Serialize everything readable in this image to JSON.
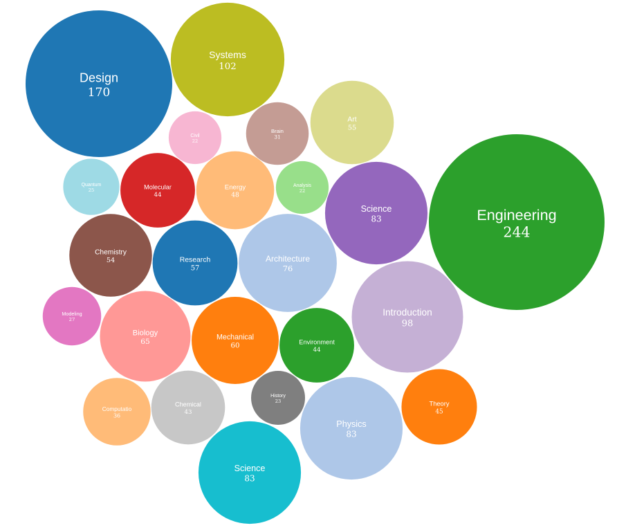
{
  "chart_data": {
    "type": "bubble",
    "title": "",
    "bubbles": [
      {
        "label": "Engineering",
        "value": 244,
        "color": "#2ca02c"
      },
      {
        "label": "Design",
        "value": 170,
        "color": "#1f77b4"
      },
      {
        "label": "Systems",
        "value": 102,
        "color": "#bcbd22"
      },
      {
        "label": "Introduction",
        "value": 98,
        "color": "#c5b0d5"
      },
      {
        "label": "Science",
        "value": 83,
        "color": "#9467bd"
      },
      {
        "label": "Physics",
        "value": 83,
        "color": "#aec7e8"
      },
      {
        "label": "Science",
        "value": 83,
        "color": "#17becf"
      },
      {
        "label": "Architecture",
        "value": 76,
        "color": "#aec7e8"
      },
      {
        "label": "Biology",
        "value": 65,
        "color": "#ff9896"
      },
      {
        "label": "Mechanical",
        "value": 60,
        "color": "#ff7f0e"
      },
      {
        "label": "Research",
        "value": 57,
        "color": "#1f77b4"
      },
      {
        "label": "Art",
        "value": 55,
        "color": "#dbdb8d"
      },
      {
        "label": "Chemistry",
        "value": 54,
        "color": "#8c564b"
      },
      {
        "label": "Energy",
        "value": 48,
        "color": "#ffbb78"
      },
      {
        "label": "Theory",
        "value": 45,
        "color": "#ff7f0e"
      },
      {
        "label": "Molecular",
        "value": 44,
        "color": "#d62728"
      },
      {
        "label": "Environment",
        "value": 44,
        "color": "#2ca02c"
      },
      {
        "label": "Chemical",
        "value": 43,
        "color": "#c7c7c7"
      },
      {
        "label": "Computatio",
        "value": 36,
        "color": "#ffbb78"
      },
      {
        "label": "Brain",
        "value": 31,
        "color": "#c49c94"
      },
      {
        "label": "Modeling",
        "value": 27,
        "color": "#e377c2"
      },
      {
        "label": "Quantum",
        "value": 25,
        "color": "#9edae5"
      },
      {
        "label": "History",
        "value": 23,
        "color": "#7f7f7f"
      },
      {
        "label": "Civil",
        "value": 22,
        "color": "#f7b6d2"
      },
      {
        "label": "Analysis",
        "value": 22,
        "color": "#98df8a"
      }
    ]
  }
}
